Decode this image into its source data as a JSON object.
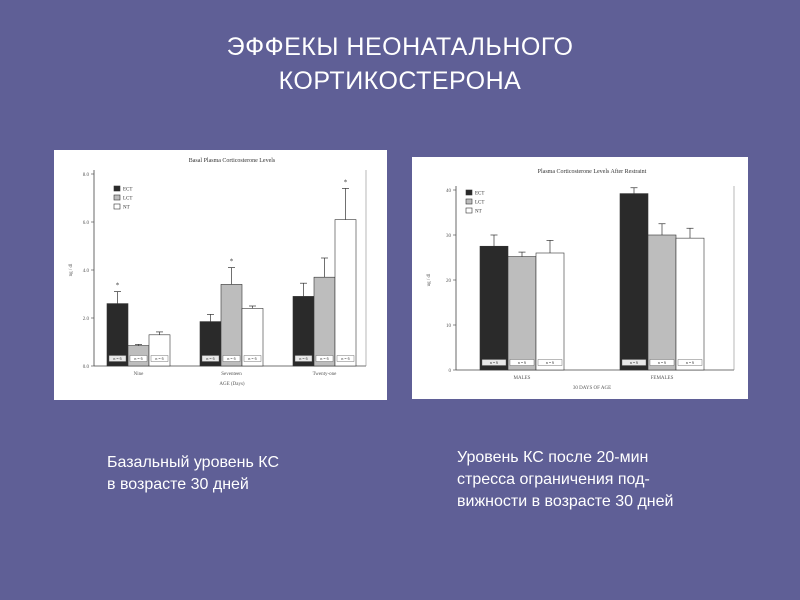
{
  "slide": {
    "title_lines": [
      "ЭФФЕКЫ НЕОНАТАЛЬНОГО",
      "КОРТИКОСТЕРОНА"
    ],
    "caption_left": [
      "Базальный уровень КС",
      "в возрасте 30 дней"
    ],
    "caption_right": [
      "Уровень КС после 20-мин",
      "стресса  ограничения под-",
      "вижности в возрасте 30 дней"
    ]
  },
  "colors": {
    "background": "#5f5f96",
    "ect": "#2a2a2a",
    "lct": "#bdbdbd",
    "nt": "#ffffff"
  },
  "chart_data": [
    {
      "type": "bar",
      "title": "Basal Plasma Corticosterone Levels",
      "xlabel": "AGE (Days)",
      "ylabel": "ng / dl",
      "ylim": [
        0,
        8
      ],
      "yticks": [
        "0.0",
        "2.0",
        "4.0",
        "6.0",
        "8.0"
      ],
      "categories": [
        "Nine",
        "Seventeen",
        "Twenty-one"
      ],
      "legend": [
        "ECT",
        "LCT",
        "NT"
      ],
      "legend_position": "top-left",
      "series": [
        {
          "name": "ECT",
          "values": [
            2.6,
            1.85,
            2.9
          ],
          "errors": [
            0.5,
            0.3,
            0.55
          ],
          "n_labels": [
            "n = 6",
            "n = 6",
            "n = 6"
          ]
        },
        {
          "name": "LCT",
          "values": [
            0.85,
            3.4,
            3.7
          ],
          "errors": [
            0.05,
            0.7,
            0.8
          ],
          "n_labels": [
            "n = 6",
            "n = 6",
            "n = 6"
          ]
        },
        {
          "name": "NT",
          "values": [
            1.3,
            2.4,
            6.1
          ],
          "errors": [
            0.12,
            0.1,
            1.3
          ],
          "n_labels": [
            "n = 6",
            "n = 6",
            "n = 6"
          ]
        }
      ],
      "significance": [
        {
          "category": 0,
          "series": 0,
          "label": "*"
        },
        {
          "category": 1,
          "series": 1,
          "label": "*"
        },
        {
          "category": 2,
          "series": 2,
          "label": "*"
        }
      ]
    },
    {
      "type": "bar",
      "title": "Plasma Corticosterone Levels After Restraint",
      "xlabel": "30 DAYS OF AGE",
      "ylabel": "ug / dl",
      "ylim": [
        0,
        40
      ],
      "yticks": [
        "0",
        "10",
        "20",
        "30",
        "40"
      ],
      "categories": [
        "MALES",
        "FEMALES"
      ],
      "legend": [
        "ECT",
        "LCT",
        "NT"
      ],
      "legend_position": "top-left",
      "series": [
        {
          "name": "ECT",
          "values": [
            27.5,
            39.2
          ],
          "errors": [
            2.5,
            1.3
          ],
          "n_labels": [
            "n = 6",
            "n = 6"
          ]
        },
        {
          "name": "LCT",
          "values": [
            25.2,
            30.0
          ],
          "errors": [
            1.0,
            2.5
          ],
          "n_labels": [
            "n = 6",
            "n = 6"
          ]
        },
        {
          "name": "NT",
          "values": [
            26.0,
            29.3
          ],
          "errors": [
            2.8,
            2.2
          ],
          "n_labels": [
            "n = 6",
            "n = 6"
          ]
        }
      ]
    }
  ]
}
